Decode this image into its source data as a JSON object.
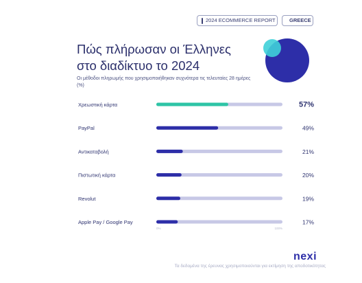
{
  "header": {
    "report_label": "2024 ECOMMERCE REPORT",
    "country_label": "GREECE"
  },
  "chart_data": {
    "type": "bar",
    "orientation": "horizontal",
    "title_lines": [
      "Πώς πλήρωσαν οι Έλληνες",
      "στο διαδίκτυο το 2024"
    ],
    "subtitle": "Οι μέθοδοι πληρωμής που χρησιμοποιήθηκαν συχνότερα τις τελευταίες 28 ημέρες (%)",
    "categories": [
      "Χρεωστική κάρτα",
      "PayPal",
      "Αντικαταβολή",
      "Πιστωτική κάρτα",
      "Revolut",
      "Apple Pay / Google Pay"
    ],
    "values": [
      57,
      49,
      21,
      20,
      19,
      17
    ],
    "value_labels": [
      "57%",
      "49%",
      "21%",
      "20%",
      "19%",
      "17%"
    ],
    "xlim": [
      0,
      100
    ],
    "axis_tick_labels": [
      "0%",
      "100%"
    ],
    "grid": false,
    "colors": {
      "highlight": "#2ec4a6",
      "bar": "#2d2ea8",
      "track": "#c7c8e6"
    }
  },
  "brand": {
    "logo_text": "nexi"
  },
  "footer": {
    "note": "Τα δεδομένα της έρευνας χρησιμοποιούνται για εκτίμηση της αποδοτικότητας"
  }
}
